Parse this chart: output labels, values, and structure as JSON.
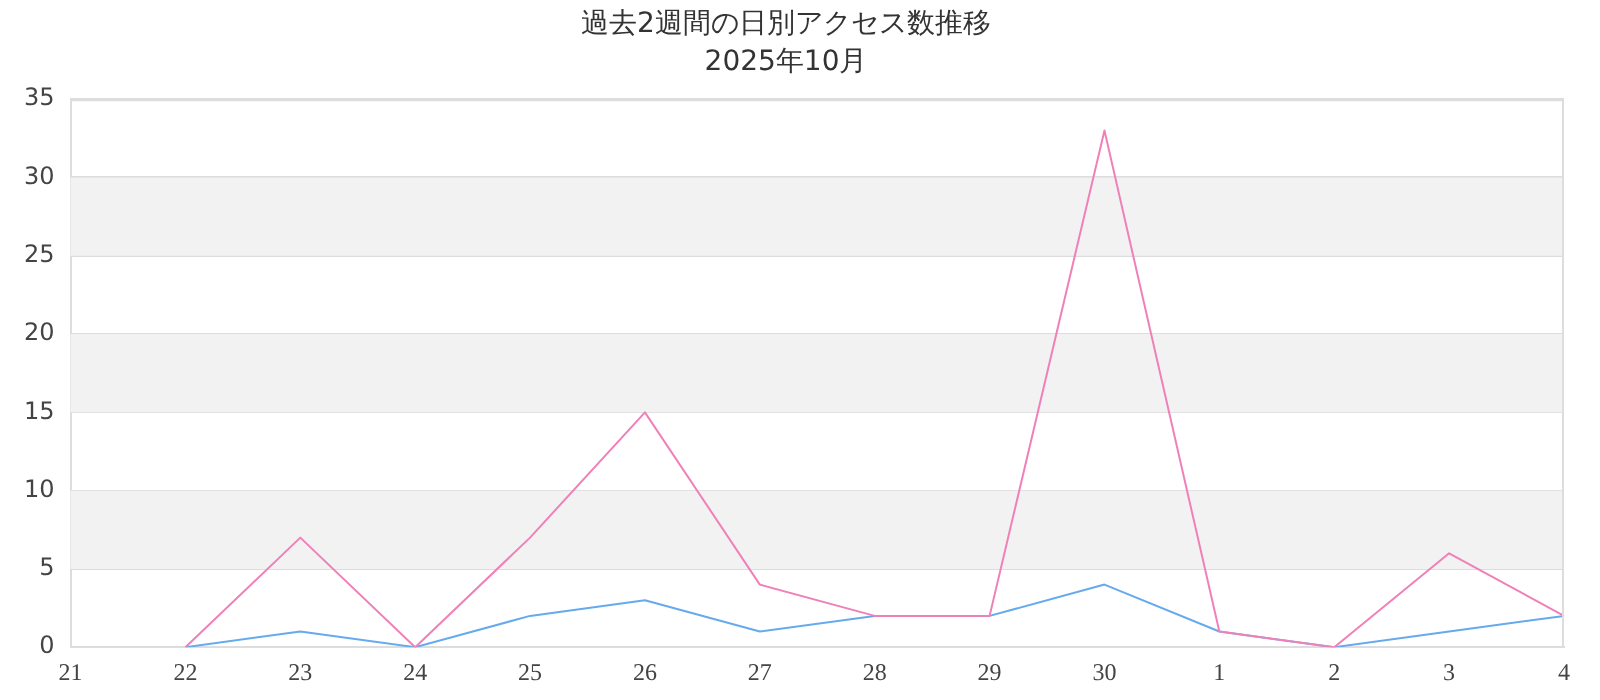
{
  "chart_data": {
    "type": "line",
    "title": "過去2週間の日別アクセス数推移",
    "subtitle": "2025年10月",
    "categories": [
      "21",
      "22",
      "23",
      "24",
      "25",
      "26",
      "27",
      "28",
      "29",
      "30",
      "1",
      "2",
      "3",
      "4"
    ],
    "series": [
      {
        "color": "#f080b8",
        "values": [
          null,
          0,
          7,
          0,
          7,
          15,
          4,
          2,
          2,
          33,
          1,
          0,
          6,
          2
        ]
      },
      {
        "color": "#66aaee",
        "values": [
          null,
          0,
          1,
          0,
          2,
          3,
          1,
          2,
          2,
          4,
          1,
          0,
          1,
          2
        ]
      }
    ],
    "ylim": [
      0,
      35
    ],
    "yticks": [
      0,
      5,
      10,
      15,
      20,
      25,
      30,
      35
    ],
    "grid": "y",
    "legend": false,
    "marker": "none",
    "line_style": "solid",
    "bands": [
      {
        "axis": "y",
        "from": 5,
        "to": 10,
        "color": "#f2f2f2"
      },
      {
        "axis": "y",
        "from": 15,
        "to": 20,
        "color": "#f2f2f2"
      },
      {
        "axis": "y",
        "from": 25,
        "to": 30,
        "color": "#f2f2f2"
      }
    ]
  }
}
